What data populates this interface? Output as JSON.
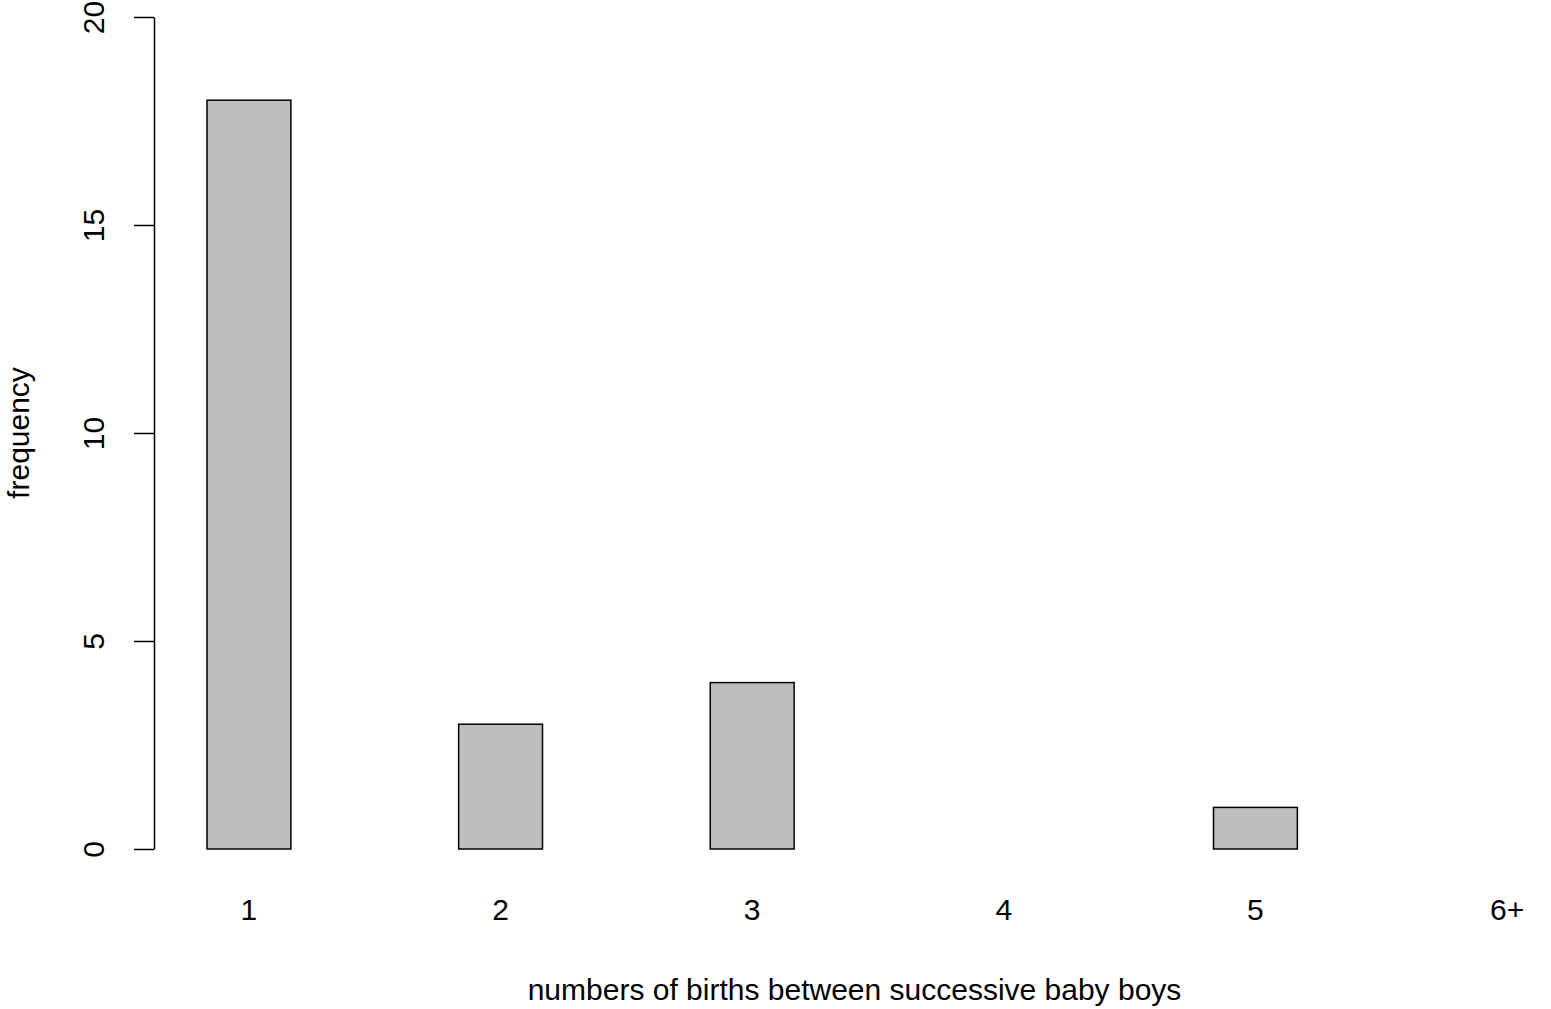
{
  "chart_data": {
    "type": "bar",
    "x_label": "numbers of births between successive baby boys",
    "y_label": "frequency",
    "categories": [
      "1",
      "2",
      "3",
      "4",
      "5",
      "6+"
    ],
    "values": [
      18,
      3,
      4,
      0,
      1,
      0
    ],
    "color": "#bebebe",
    "ylim": [
      0,
      20
    ],
    "yticks": [
      0,
      5,
      10,
      15,
      20
    ]
  }
}
